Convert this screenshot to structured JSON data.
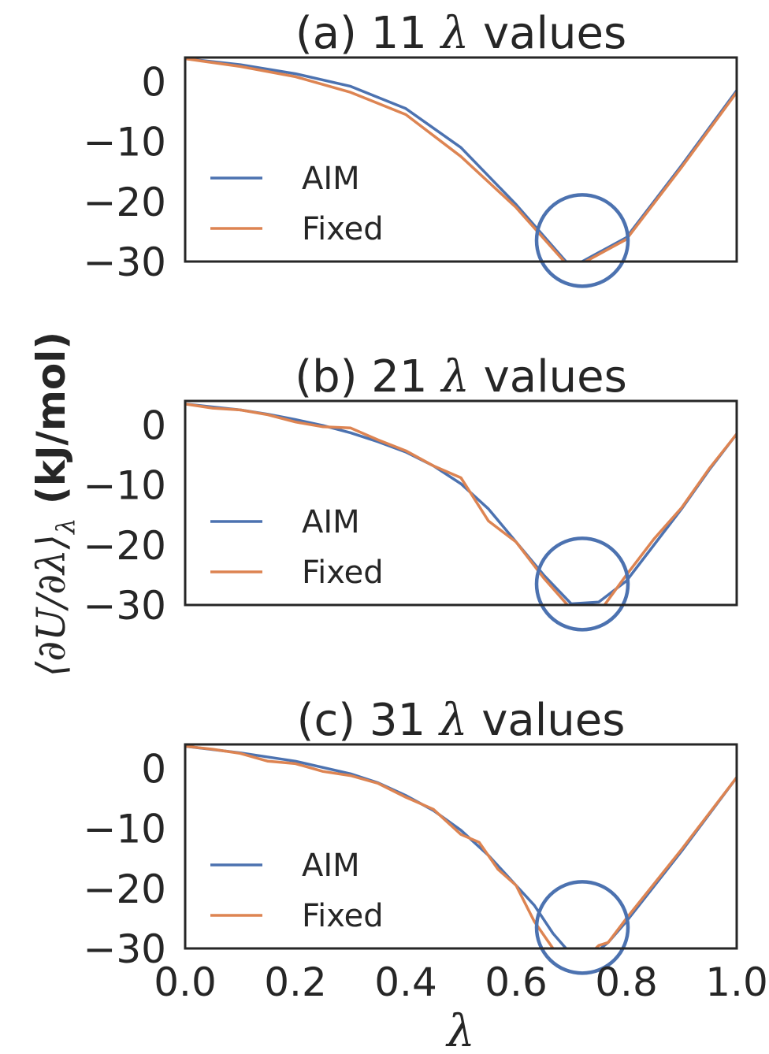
{
  "chart_data": [
    {
      "type": "line",
      "title": "(a) 11 λ values",
      "title_prefix": "(a) 11 ",
      "title_symbol": "λ",
      "title_suffix": " values",
      "xlim": [
        0.0,
        1.0
      ],
      "ylim": [
        -30,
        4
      ],
      "yticks": [
        "0",
        "−10",
        "−20",
        "−30"
      ],
      "ytick_values": [
        0,
        -10,
        -20,
        -30
      ],
      "legend": {
        "position": "lower-left",
        "entries": [
          "AIM",
          "Fixed"
        ]
      },
      "series": [
        {
          "name": "AIM",
          "color": "#4c72b0",
          "x": [
            0.0,
            0.1,
            0.2,
            0.3,
            0.4,
            0.5,
            0.6,
            0.7,
            0.8,
            0.9,
            1.0
          ],
          "y": [
            3.8,
            2.8,
            1.3,
            -0.8,
            -4.5,
            -11.0,
            -20.5,
            -31.0,
            -26.0,
            -14.0,
            -1.5
          ]
        },
        {
          "name": "Fixed",
          "color": "#dd8452",
          "x": [
            0.0,
            0.1,
            0.2,
            0.3,
            0.4,
            0.5,
            0.6,
            0.7,
            0.8,
            0.9,
            1.0
          ],
          "y": [
            3.8,
            2.5,
            0.8,
            -1.8,
            -5.5,
            -12.5,
            -21.0,
            -31.3,
            -26.3,
            -14.3,
            -1.8
          ]
        }
      ],
      "annotation": {
        "shape": "circle",
        "center": [
          0.72,
          -26.5
        ],
        "color": "#4c72b0"
      }
    },
    {
      "type": "line",
      "title": "(b) 21 λ values",
      "title_prefix": "(b) 21 ",
      "title_symbol": "λ",
      "title_suffix": " values",
      "xlim": [
        0.0,
        1.0
      ],
      "ylim": [
        -30,
        4
      ],
      "yticks": [
        "0",
        "−10",
        "−20",
        "−30"
      ],
      "ytick_values": [
        0,
        -10,
        -20,
        -30
      ],
      "legend": {
        "position": "lower-left",
        "entries": [
          "AIM",
          "Fixed"
        ]
      },
      "series": [
        {
          "name": "AIM",
          "color": "#4c72b0",
          "x": [
            0.0,
            0.05,
            0.1,
            0.15,
            0.2,
            0.25,
            0.3,
            0.35,
            0.4,
            0.45,
            0.5,
            0.55,
            0.6,
            0.65,
            0.7,
            0.75,
            0.8,
            0.85,
            0.9,
            0.95,
            1.0
          ],
          "y": [
            3.5,
            3.0,
            2.5,
            1.8,
            0.9,
            -0.1,
            -1.3,
            -2.8,
            -4.5,
            -6.8,
            -9.8,
            -14.0,
            -19.5,
            -25.0,
            -29.8,
            -29.5,
            -26.0,
            -20.0,
            -14.0,
            -7.5,
            -1.5
          ]
        },
        {
          "name": "Fixed",
          "color": "#dd8452",
          "x": [
            0.0,
            0.05,
            0.1,
            0.15,
            0.2,
            0.25,
            0.3,
            0.35,
            0.4,
            0.45,
            0.5,
            0.55,
            0.6,
            0.65,
            0.7,
            0.75,
            0.8,
            0.85,
            0.9,
            0.95,
            1.0
          ],
          "y": [
            3.5,
            2.8,
            2.5,
            1.7,
            0.5,
            -0.3,
            -0.5,
            -2.5,
            -4.3,
            -6.8,
            -8.8,
            -16.0,
            -19.5,
            -25.5,
            -30.7,
            -31.3,
            -25.0,
            -19.0,
            -13.8,
            -7.3,
            -1.5
          ]
        }
      ],
      "annotation": {
        "shape": "circle",
        "center": [
          0.72,
          -26.5
        ],
        "color": "#4c72b0"
      }
    },
    {
      "type": "line",
      "title": "(c) 31 λ values",
      "title_prefix": "(c) 31 ",
      "title_symbol": "λ",
      "title_suffix": " values",
      "xlim": [
        0.0,
        1.0
      ],
      "ylim": [
        -30,
        4
      ],
      "yticks": [
        "0",
        "−10",
        "−20",
        "−30"
      ],
      "ytick_values": [
        0,
        -10,
        -20,
        -30
      ],
      "xticks": [
        "0.0",
        "0.2",
        "0.4",
        "0.6",
        "0.8",
        "1.0"
      ],
      "xtick_values": [
        0.0,
        0.2,
        0.4,
        0.6,
        0.8,
        1.0
      ],
      "legend": {
        "position": "lower-left",
        "entries": [
          "AIM",
          "Fixed"
        ]
      },
      "series": [
        {
          "name": "AIM",
          "color": "#4c72b0",
          "x": [
            0.0,
            0.1,
            0.2,
            0.3,
            0.35,
            0.4,
            0.45,
            0.5,
            0.55,
            0.6,
            0.633,
            0.667,
            0.7,
            0.733,
            0.767,
            0.8,
            0.9,
            1.0
          ],
          "y": [
            3.7,
            2.6,
            1.2,
            -0.9,
            -2.4,
            -4.5,
            -7.0,
            -10.3,
            -14.5,
            -19.5,
            -22.8,
            -27.5,
            -31.0,
            -31.5,
            -29.0,
            -25.5,
            -13.8,
            -1.5
          ]
        },
        {
          "name": "Fixed",
          "color": "#dd8452",
          "x": [
            0.0,
            0.05,
            0.1,
            0.15,
            0.2,
            0.25,
            0.3,
            0.35,
            0.4,
            0.45,
            0.5,
            0.533,
            0.567,
            0.6,
            0.633,
            0.667,
            0.7,
            0.717,
            0.733,
            0.75,
            0.767,
            0.8,
            0.9,
            1.0
          ],
          "y": [
            3.7,
            3.2,
            2.5,
            1.2,
            0.8,
            -0.5,
            -1.2,
            -2.5,
            -4.8,
            -6.8,
            -11.0,
            -12.3,
            -16.8,
            -19.5,
            -25.5,
            -30.0,
            -31.5,
            -31.5,
            -31.0,
            -29.5,
            -29.0,
            -25.0,
            -13.5,
            -1.5
          ]
        }
      ],
      "annotation": {
        "shape": "circle",
        "center": [
          0.72,
          -26.5
        ],
        "color": "#4c72b0"
      }
    }
  ],
  "shared_axes": {
    "ylabel_prefix": "⟨∂U/∂λ⟩",
    "ylabel_sub": "λ",
    "ylabel_suffix": " (kJ/mol)",
    "xlabel": "λ"
  }
}
